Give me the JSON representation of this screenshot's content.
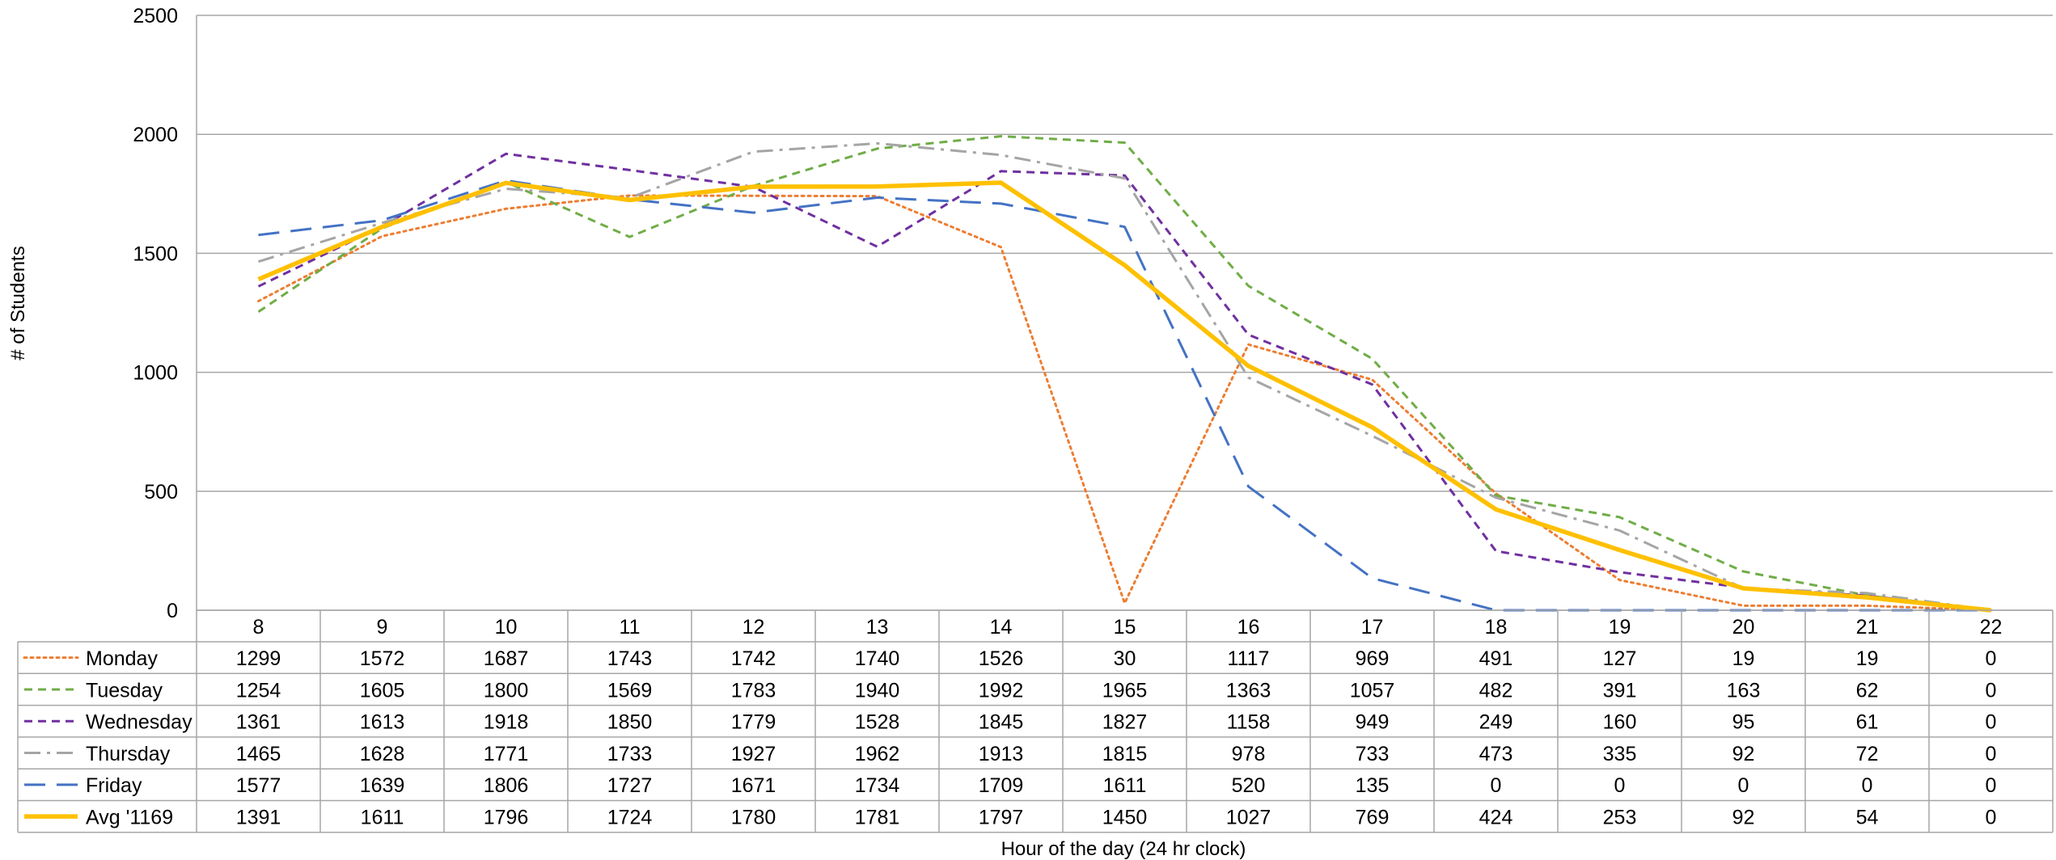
{
  "chart_data": {
    "type": "line",
    "x": [
      8,
      9,
      10,
      11,
      12,
      13,
      14,
      15,
      16,
      17,
      18,
      19,
      20,
      21,
      22
    ],
    "xlabel": "Hour of the day (24 hr clock)",
    "ylabel": "# of Students",
    "ylim": [
      0,
      2500
    ],
    "yticks": [
      0,
      500,
      1000,
      1500,
      2000,
      2500
    ],
    "grid": "horizontal",
    "legend": "data table below chart",
    "series": [
      {
        "name": "Monday",
        "color": "#ED7D31",
        "dash": "dotted",
        "values": [
          1299,
          1572,
          1687,
          1743,
          1742,
          1740,
          1526,
          30,
          1117,
          969,
          491,
          127,
          19,
          19,
          0
        ]
      },
      {
        "name": "Tuesday",
        "color": "#70AD47",
        "dash": "dashed",
        "values": [
          1254,
          1605,
          1800,
          1569,
          1783,
          1940,
          1992,
          1965,
          1363,
          1057,
          482,
          391,
          163,
          62,
          0
        ]
      },
      {
        "name": "Wednesday",
        "color": "#7030A0",
        "dash": "dashed",
        "values": [
          1361,
          1613,
          1918,
          1850,
          1779,
          1528,
          1845,
          1827,
          1158,
          949,
          249,
          160,
          95,
          61,
          0
        ]
      },
      {
        "name": "Thursday",
        "color": "#A5A5A5",
        "dash": "dash-dot",
        "values": [
          1465,
          1628,
          1771,
          1733,
          1927,
          1962,
          1913,
          1815,
          978,
          733,
          473,
          335,
          92,
          72,
          0
        ]
      },
      {
        "name": "Friday",
        "color": "#4472C4",
        "dash": "long-dash",
        "values": [
          1577,
          1639,
          1806,
          1727,
          1671,
          1734,
          1709,
          1611,
          520,
          135,
          0,
          0,
          0,
          0,
          0
        ]
      },
      {
        "name": "Avg '1169",
        "color": "#FFC000",
        "dash": "solid",
        "values": [
          1391,
          1611,
          1796,
          1724,
          1780,
          1781,
          1797,
          1450,
          1027,
          769,
          424,
          253,
          92,
          54,
          0
        ]
      }
    ]
  }
}
